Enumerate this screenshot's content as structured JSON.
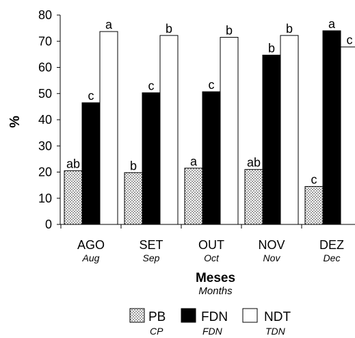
{
  "chart_data": {
    "type": "bar",
    "ylabel": "%",
    "xlabel": "Meses",
    "xlabel_sub": "Months",
    "ylim": [
      0,
      80
    ],
    "yticks": [
      0,
      10,
      20,
      30,
      40,
      50,
      60,
      70,
      80
    ],
    "grid": false,
    "legend_position": "bottom",
    "categories": [
      "AGO",
      "SET",
      "OUT",
      "NOV",
      "DEZ"
    ],
    "categories_sub": [
      "Aug",
      "Sep",
      "Oct",
      "Nov",
      "Dec"
    ],
    "series": [
      {
        "name": "PB",
        "name_sub": "CP",
        "fill": "dotted",
        "values": [
          20.5,
          19.8,
          21.5,
          21.0,
          14.5
        ],
        "labels": [
          "ab",
          "b",
          "a",
          "ab",
          "c"
        ]
      },
      {
        "name": "FDN",
        "name_sub": "FDN",
        "fill": "#000000",
        "values": [
          46.5,
          50.3,
          50.7,
          64.7,
          74.0
        ],
        "labels": [
          "c",
          "c",
          "c",
          "b",
          "a"
        ]
      },
      {
        "name": "NDT",
        "name_sub": "TDN",
        "fill": "#ffffff",
        "values": [
          73.7,
          72.2,
          71.5,
          72.2,
          67.8
        ],
        "labels": [
          "a",
          "b",
          "b",
          "b",
          "c"
        ]
      }
    ]
  }
}
